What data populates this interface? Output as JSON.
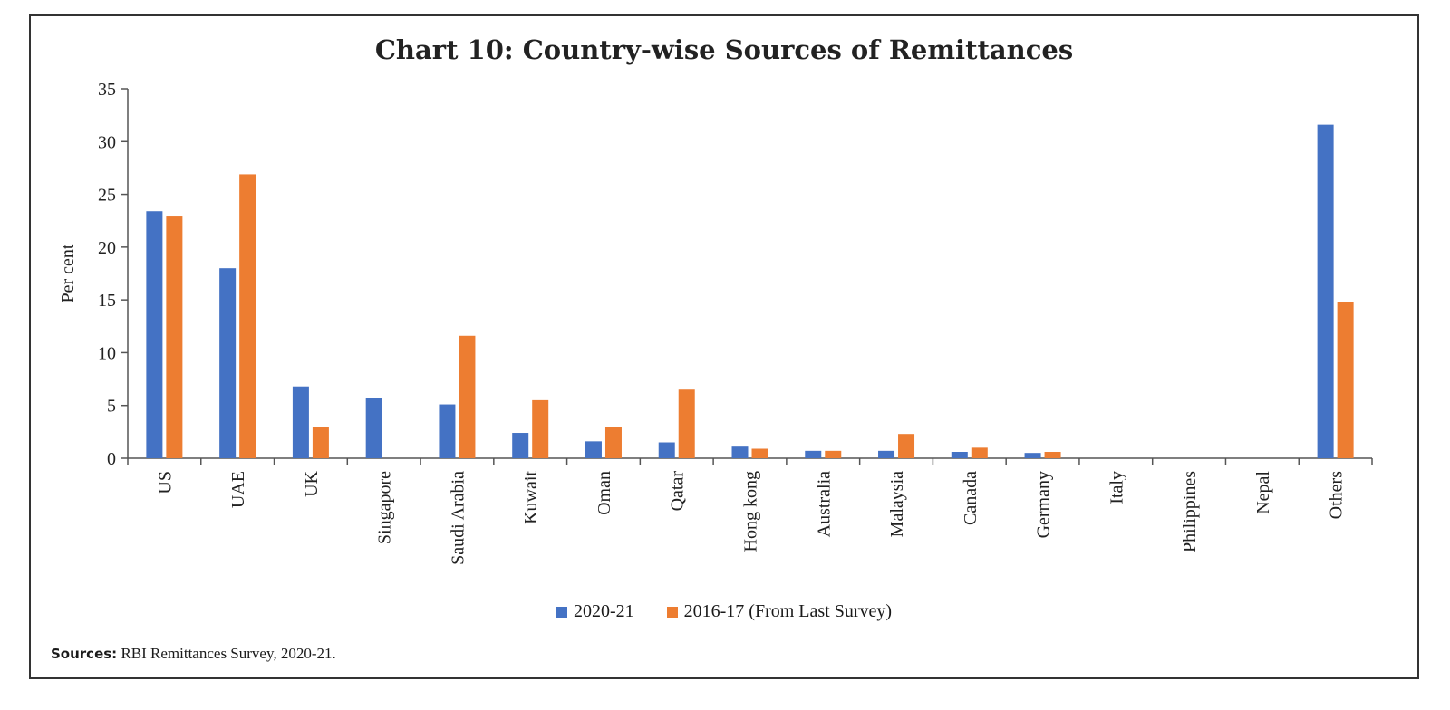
{
  "chart_data": {
    "type": "bar",
    "title": "Chart 10: Country-wise Sources of Remittances",
    "xlabel": "",
    "ylabel": "Per cent",
    "ylim": [
      0,
      35
    ],
    "yticks": [
      "0",
      "5",
      "10",
      "15",
      "20",
      "25",
      "30",
      "35"
    ],
    "grid": false,
    "legend_position": "bottom",
    "categories": [
      "US",
      "UAE",
      "UK",
      "Singapore",
      "Saudi Arabia",
      "Kuwait",
      "Oman",
      "Qatar",
      "Hong kong",
      "Australia",
      "Malaysia",
      "Canada",
      "Germany",
      "Italy",
      "Philippines",
      "Nepal",
      "Others"
    ],
    "series": [
      {
        "name": "2020-21",
        "color": "#4472C4",
        "values": [
          23.4,
          18.0,
          6.8,
          5.7,
          5.1,
          2.4,
          1.6,
          1.5,
          1.1,
          0.7,
          0.7,
          0.6,
          0.5,
          0,
          0,
          0,
          31.6
        ]
      },
      {
        "name": "2016-17 (From Last Survey)",
        "color": "#ED7D31",
        "values": [
          22.9,
          26.9,
          3.0,
          0,
          11.6,
          5.5,
          3.0,
          6.5,
          0.9,
          0.7,
          2.3,
          1.0,
          0.6,
          0,
          0,
          0,
          14.8
        ]
      }
    ]
  },
  "legend": {
    "series1_label": "2020-21",
    "series2_label": "2016-17 (From Last Survey)"
  },
  "sources": {
    "label": "Sources:",
    "text": "RBI Remittances Survey, 2020-21."
  }
}
